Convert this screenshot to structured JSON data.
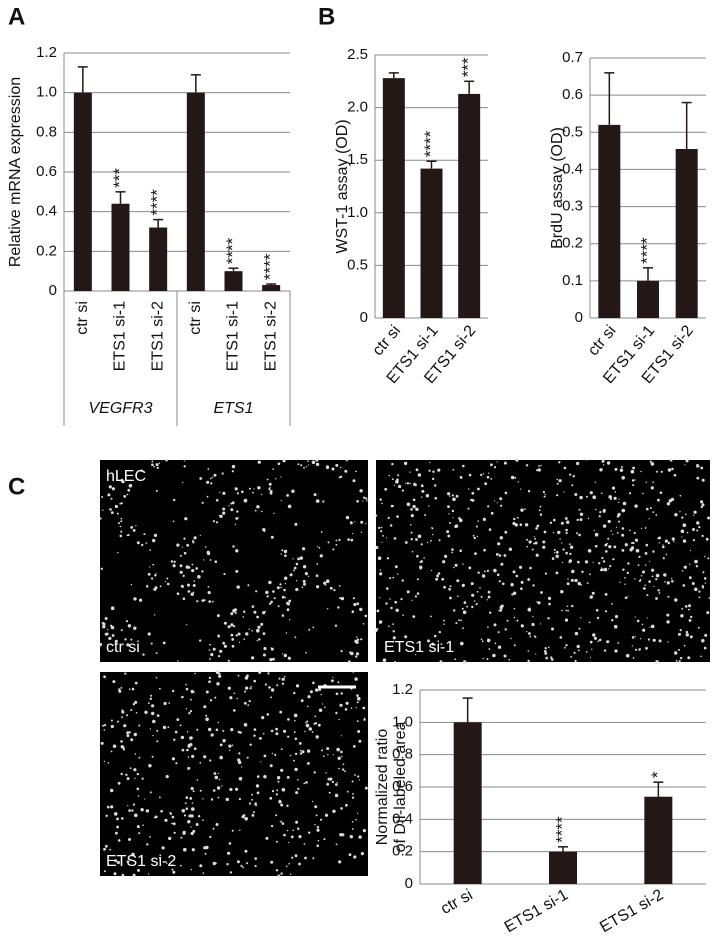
{
  "chart_data": [
    {
      "type": "bar",
      "panel_label": "A",
      "ylabel": "Relative mRNA expression",
      "categories": [
        "ctr si",
        "ETS1 si-1",
        "ETS1 si-2",
        "ctr si",
        "ETS1 si-1",
        "ETS1 si-2"
      ],
      "values": [
        1.0,
        0.44,
        0.32,
        1.0,
        0.1,
        0.03
      ],
      "errors": [
        0.13,
        0.06,
        0.04,
        0.09,
        0.015,
        0.005
      ],
      "significance": [
        null,
        "***",
        "****",
        null,
        "****",
        "****"
      ],
      "groups": [
        "VEGFR3",
        "ETS1"
      ],
      "color": "#231815",
      "ylim": [
        0,
        1.2
      ],
      "yticks": [
        0,
        0.2,
        0.4,
        0.6,
        0.8,
        {
          "value": 1,
          "label": "1.0"
        },
        1.2
      ],
      "grid": true
    },
    {
      "type": "bar",
      "panel_label": "B",
      "ylabel": "WST-1 assay (OD)",
      "categories": [
        "ctr si",
        "ETS1 si-1",
        "ETS1 si-2"
      ],
      "values": [
        2.28,
        1.42,
        2.13
      ],
      "errors": [
        0.05,
        0.07,
        0.12
      ],
      "significance": [
        null,
        "****",
        "***"
      ],
      "color": "#231815",
      "ylim": [
        0,
        2.5
      ],
      "yticks": [
        0,
        0.5,
        {
          "value": 1,
          "label": "1.0"
        },
        1.5,
        {
          "value": 2,
          "label": "2.0"
        },
        2.5
      ],
      "grid": true
    },
    {
      "type": "bar",
      "ylabel": "BrdU assay (OD)",
      "categories": [
        "ctr si",
        "ETS1 si-1",
        "ETS1 si-2"
      ],
      "values": [
        0.52,
        0.1,
        0.455
      ],
      "errors": [
        0.14,
        0.035,
        0.125
      ],
      "significance": [
        null,
        "****",
        null
      ],
      "color": "#231815",
      "ylim": [
        0,
        0.7
      ],
      "yticks": [
        0,
        0.1,
        0.2,
        0.3,
        0.4,
        0.5,
        0.6,
        0.7
      ],
      "grid": true
    },
    {
      "type": "bar",
      "panel_label": "C",
      "ylabel": [
        "Normalized ratio",
        "of DiI-labeled area"
      ],
      "categories": [
        "ctr si",
        "ETS1 si-1",
        "ETS1 si-2"
      ],
      "values": [
        1.0,
        0.2,
        0.54
      ],
      "errors": [
        0.15,
        0.03,
        0.09
      ],
      "significance": [
        null,
        "****",
        "*"
      ],
      "color": "#231815",
      "ylim": [
        0,
        1.2
      ],
      "yticks": [
        0,
        0.2,
        0.4,
        0.6,
        0.8,
        {
          "value": 1,
          "label": "1.0"
        },
        1.2
      ],
      "grid": true
    }
  ],
  "micrographs": {
    "panels": [
      {
        "top_label": "hLEC",
        "bottom_label": "ctr si"
      },
      {
        "bottom_label": "ETS1 si-1"
      },
      {
        "bottom_label": "ETS1 si-2"
      }
    ]
  }
}
